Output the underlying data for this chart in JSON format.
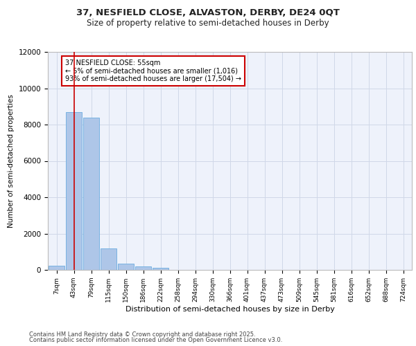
{
  "title_line1": "37, NESFIELD CLOSE, ALVASTON, DERBY, DE24 0QT",
  "title_line2": "Size of property relative to semi-detached houses in Derby",
  "xlabel": "Distribution of semi-detached houses by size in Derby",
  "ylabel": "Number of semi-detached properties",
  "footer_line1": "Contains HM Land Registry data © Crown copyright and database right 2025.",
  "footer_line2": "Contains public sector information licensed under the Open Government Licence v3.0.",
  "categories": [
    "7sqm",
    "43sqm",
    "79sqm",
    "115sqm",
    "150sqm",
    "186sqm",
    "222sqm",
    "258sqm",
    "294sqm",
    "330sqm",
    "366sqm",
    "401sqm",
    "437sqm",
    "473sqm",
    "509sqm",
    "545sqm",
    "581sqm",
    "616sqm",
    "652sqm",
    "688sqm",
    "724sqm"
  ],
  "values": [
    230,
    8680,
    8400,
    1200,
    340,
    190,
    110,
    0,
    0,
    0,
    0,
    0,
    0,
    0,
    0,
    0,
    0,
    0,
    0,
    0,
    0
  ],
  "bar_color": "#aec6e8",
  "bar_edge_color": "#6aace0",
  "grid_color": "#d0d8e8",
  "background_color": "#eef2fb",
  "annotation_text": "37 NESFIELD CLOSE: 55sqm\n← 5% of semi-detached houses are smaller (1,016)\n93% of semi-detached houses are larger (17,504) →",
  "vline_x": 1,
  "vline_color": "#cc0000",
  "annotation_box_color": "#cc0000",
  "ylim": [
    0,
    12000
  ],
  "yticks": [
    0,
    2000,
    4000,
    6000,
    8000,
    10000,
    12000
  ]
}
